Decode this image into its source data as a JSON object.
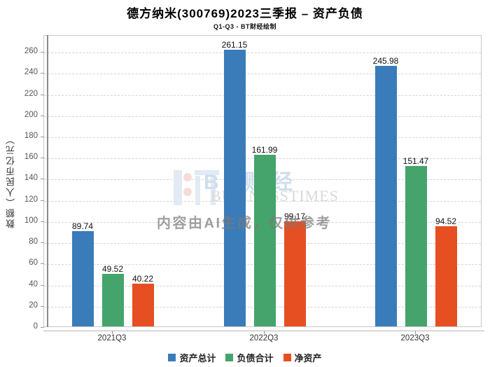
{
  "page": {
    "title": "德方纳米(300769)2023三季报 – 资产负债",
    "subtitle": "Q1-Q3 - BT财经绘制"
  },
  "chart_data": {
    "type": "bar",
    "title": "德方纳米(300769)2023三季报 – 资产负债",
    "subtitle": "Q1-Q3 - BT财经绘制",
    "categories": [
      "2021Q3",
      "2022Q3",
      "2023Q3"
    ],
    "series": [
      {
        "name": "资产总计",
        "color": "#3a7cba",
        "values": [
          89.74,
          261.15,
          245.98
        ]
      },
      {
        "name": "负债合计",
        "color": "#44a46c",
        "values": [
          49.52,
          161.99,
          151.47
        ]
      },
      {
        "name": "净资产",
        "color": "#e64f22",
        "values": [
          40.22,
          99.17,
          94.52
        ]
      }
    ],
    "xlabel": "",
    "ylabel": "数额（人民币亿元）",
    "ylim": [
      0,
      276
    ],
    "yticks": [
      0,
      20,
      40,
      60,
      80,
      100,
      120,
      140,
      160,
      180,
      200,
      220,
      240,
      260
    ],
    "grid": "horizontal-dashed",
    "legend_position": "bottom",
    "value_labels": true
  },
  "watermark": {
    "logo": "bt-businesstimes-logo",
    "brand_cn": "ΒΤ财经",
    "brand_en": "BUSINESSTIMES",
    "disclaimer": "内容由AI生成，仅供参考"
  },
  "colors": {
    "axis_spine": "#8a8a8a",
    "grid": "#d4d4d4",
    "plot_border": "#c9c9c9",
    "title_text": "#000000",
    "tick_text": "#555555"
  }
}
